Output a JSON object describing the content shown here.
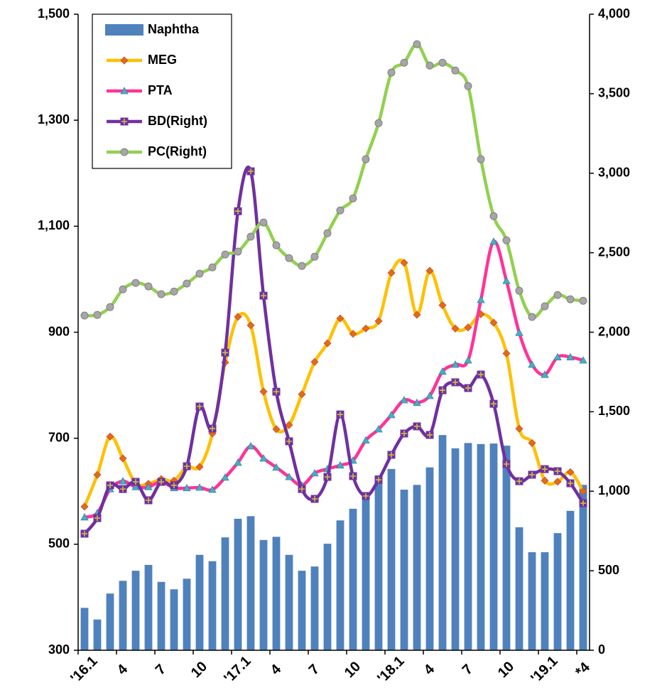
{
  "chart_data": {
    "type": "bar_line",
    "categories": [
      "'16.1",
      null,
      null,
      "4",
      null,
      null,
      "7",
      null,
      null,
      "10",
      null,
      null,
      "'17.1",
      null,
      null,
      "4",
      null,
      null,
      "7",
      null,
      null,
      "10",
      null,
      null,
      "'18.1",
      null,
      null,
      "4",
      null,
      null,
      "7",
      null,
      null,
      "10",
      null,
      null,
      "'19.1",
      null,
      null,
      "*4"
    ],
    "series": [
      {
        "name": "Naphtha",
        "kind": "bar",
        "axis": "y",
        "color": "#4f81bd",
        "values": [
          380,
          358,
          407,
          431,
          450,
          461,
          429,
          415,
          435,
          480,
          468,
          513,
          548,
          553,
          508,
          514,
          480,
          450,
          458,
          501,
          545,
          567,
          588,
          630,
          642,
          603,
          612,
          645,
          706,
          681,
          691,
          689,
          690,
          686,
          532,
          485,
          485,
          521,
          563,
          612
        ]
      },
      {
        "name": "MEG",
        "kind": "line",
        "marker": "diamond",
        "axis": "y",
        "color": "#ffc000",
        "marker_color": "#e46c0a",
        "values": [
          571,
          631,
          703,
          662,
          615,
          614,
          623,
          620,
          646,
          646,
          709,
          843,
          929,
          913,
          788,
          717,
          725,
          783,
          844,
          879,
          926,
          897,
          907,
          921,
          1012,
          1031,
          933,
          1016,
          951,
          907,
          909,
          934,
          918,
          860,
          718,
          691,
          620,
          618,
          636,
          600
        ]
      },
      {
        "name": "PTA",
        "kind": "line",
        "marker": "triangle",
        "axis": "y",
        "color": "#ff3399",
        "marker_color": "#4bacc6",
        "values": [
          551,
          559,
          604,
          619,
          608,
          608,
          618,
          606,
          606,
          607,
          603,
          626,
          654,
          685,
          662,
          645,
          627,
          611,
          634,
          642,
          649,
          658,
          696,
          717,
          744,
          772,
          767,
          780,
          826,
          839,
          847,
          961,
          1071,
          997,
          899,
          839,
          820,
          853,
          853,
          847
        ]
      },
      {
        "name": "BD(Right)",
        "kind": "line",
        "marker": "square",
        "axis": "y2",
        "color": "#7030a0",
        "marker_color": "#c9c23a",
        "values": [
          733,
          831,
          1037,
          1014,
          1059,
          943,
          1059,
          1037,
          1157,
          1533,
          1394,
          1872,
          2761,
          3012,
          2230,
          1626,
          1314,
          1014,
          952,
          1090,
          1483,
          1095,
          970,
          1072,
          1229,
          1363,
          1408,
          1354,
          1635,
          1685,
          1649,
          1734,
          1550,
          1171,
          1063,
          1104,
          1139,
          1126,
          1050,
          925
        ]
      },
      {
        "name": "PC(Right)",
        "kind": "line",
        "marker": "circle",
        "axis": "y2",
        "color": "#92d050",
        "marker_color": "#a6a6a6",
        "values": [
          2105,
          2109,
          2158,
          2270,
          2310,
          2288,
          2239,
          2256,
          2306,
          2368,
          2408,
          2489,
          2507,
          2601,
          2690,
          2547,
          2466,
          2417,
          2475,
          2623,
          2766,
          2842,
          3088,
          3315,
          3633,
          3695,
          3811,
          3677,
          3695,
          3646,
          3548,
          3088,
          2730,
          2578,
          2261,
          2096,
          2163,
          2234,
          2207,
          2198
        ]
      }
    ],
    "ylim": [
      300,
      1500
    ],
    "yticks": [
      300,
      500,
      700,
      900,
      {
        "value": 1100,
        "label": "1,100"
      },
      {
        "value": 1300,
        "label": "1,300"
      },
      {
        "value": 1500,
        "label": "1,500"
      }
    ],
    "y2lim": [
      0,
      4000
    ],
    "y2ticks": [
      0,
      500,
      {
        "value": 1000,
        "label": "1,000"
      },
      {
        "value": 1500,
        "label": "1,500"
      },
      {
        "value": 2000,
        "label": "2,000"
      },
      {
        "value": 2500,
        "label": "2,500"
      },
      {
        "value": 3000,
        "label": "3,000"
      },
      {
        "value": 3500,
        "label": "3,500"
      },
      {
        "value": 4000,
        "label": "4,000"
      }
    ],
    "grid": false,
    "legend": "upper left"
  }
}
